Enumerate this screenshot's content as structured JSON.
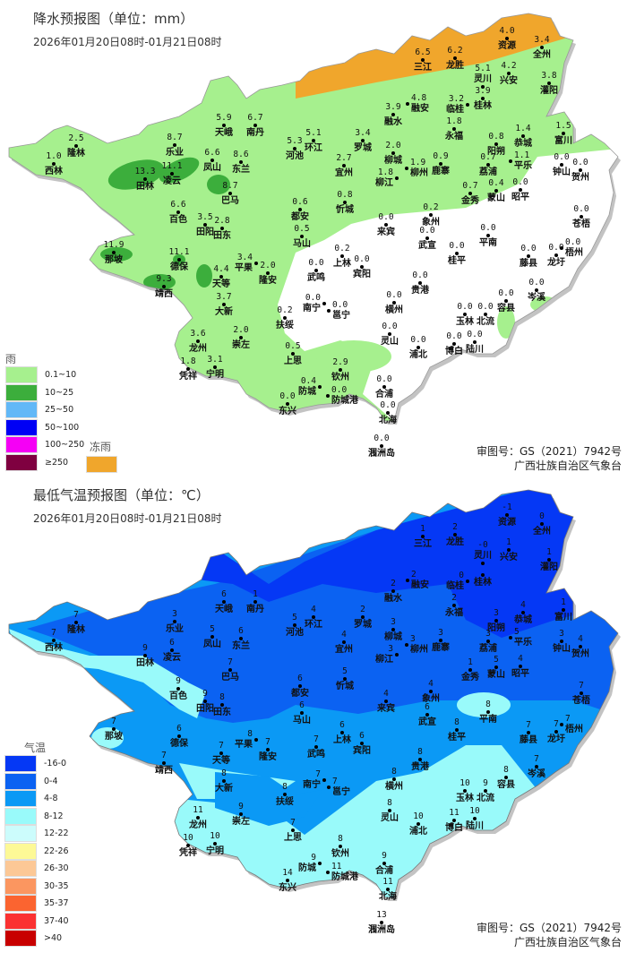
{
  "precip_map": {
    "title": "降水预报图（单位：mm）",
    "period": "2026年01月20日08时-01月21日08时",
    "legend_title": "雨",
    "legend": [
      {
        "label": "0.1~10",
        "color": "#a6f08e"
      },
      {
        "label": "10~25",
        "color": "#3cae3c"
      },
      {
        "label": "25~50",
        "color": "#62b8f7"
      },
      {
        "label": "50~100",
        "color": "#0000f5"
      },
      {
        "label": "100~250",
        "color": "#f500f5"
      },
      {
        "label": "≥250",
        "color": "#7f0040"
      }
    ],
    "freezing_rain_label": "冻雨",
    "freezing_rain_color": "#f0a62c",
    "approval_no": "审图号：GS（2021）7942号",
    "issuer": "广西壮族自治区气象台"
  },
  "tmin_map": {
    "title": "最低气温预报图（单位：℃）",
    "period": "2026年01月20日08时-01月21日08时",
    "legend_title": "气温",
    "legend": [
      {
        "label": "-16-0",
        "color": "#0538f5"
      },
      {
        "label": "0-4",
        "color": "#0b62f2"
      },
      {
        "label": "4-8",
        "color": "#0b99f5"
      },
      {
        "label": "8-12",
        "color": "#99fafa"
      },
      {
        "label": "12-22",
        "color": "#ccfcfc"
      },
      {
        "label": "22-26",
        "color": "#fdf996"
      },
      {
        "label": "26-30",
        "color": "#fcc896"
      },
      {
        "label": "30-35",
        "color": "#fb9660"
      },
      {
        "label": "35-37",
        "color": "#fb6430"
      },
      {
        "label": "37-40",
        "color": "#fb3232"
      },
      {
        "label": ">40",
        "color": "#c80000"
      }
    ],
    "approval_no": "审图号：GS（2021）7942号",
    "issuer": "广西壮族自治区气象台"
  },
  "stations": [
    {
      "name": "隆林",
      "rain": "2.5",
      "tmin": "7"
    },
    {
      "name": "西林",
      "rain": "1.0",
      "tmin": "7"
    },
    {
      "name": "乐业",
      "rain": "8.7",
      "tmin": "3"
    },
    {
      "name": "天峨",
      "rain": "5.9",
      "tmin": "6"
    },
    {
      "name": "南丹",
      "rain": "6.7",
      "tmin": "1"
    },
    {
      "name": "凤山",
      "rain": "6.6",
      "tmin": "5"
    },
    {
      "name": "东兰",
      "rain": "8.6",
      "tmin": "6"
    },
    {
      "name": "田林",
      "rain": "13.3",
      "tmin": "9"
    },
    {
      "name": "凌云",
      "rain": "11.1",
      "tmin": "6"
    },
    {
      "name": "巴马",
      "rain": "8.7",
      "tmin": "7"
    },
    {
      "name": "河池",
      "rain": "5.3",
      "tmin": "5"
    },
    {
      "name": "环江",
      "rain": "5.1",
      "tmin": "4"
    },
    {
      "name": "百色",
      "rain": "6.6",
      "tmin": "9"
    },
    {
      "name": "田阳",
      "rain": "3.5",
      "tmin": "9"
    },
    {
      "name": "田东",
      "rain": "2.8",
      "tmin": "8"
    },
    {
      "name": "都安",
      "rain": "0.6",
      "tmin": "6"
    },
    {
      "name": "马山",
      "rain": "0.5",
      "tmin": "6"
    },
    {
      "name": "那坡",
      "rain": "11.9",
      "tmin": "7"
    },
    {
      "name": "德保",
      "rain": "11.1",
      "tmin": "6"
    },
    {
      "name": "靖西",
      "rain": "9.3",
      "tmin": "7"
    },
    {
      "name": "天等",
      "rain": "4.4",
      "tmin": "7"
    },
    {
      "name": "大新",
      "rain": "3.7",
      "tmin": "8"
    },
    {
      "name": "平果",
      "rain": "3.4",
      "tmin": "8"
    },
    {
      "name": "隆安",
      "rain": "2.0",
      "tmin": "7"
    },
    {
      "name": "扶绥",
      "rain": "0.2",
      "tmin": "8"
    },
    {
      "name": "龙州",
      "rain": "3.6",
      "tmin": "11"
    },
    {
      "name": "凭祥",
      "rain": "1.8",
      "tmin": "10"
    },
    {
      "name": "宁明",
      "rain": "3.1",
      "tmin": "10"
    },
    {
      "name": "崇左",
      "rain": "2.0",
      "tmin": "9"
    },
    {
      "name": "上思",
      "rain": "0.5",
      "tmin": "7"
    },
    {
      "name": "东兴",
      "rain": "0.0",
      "tmin": "14"
    },
    {
      "name": "防城",
      "rain": "0.4",
      "tmin": "9"
    },
    {
      "name": "防城港",
      "rain": "0.0",
      "tmin": "11"
    },
    {
      "name": "钦州",
      "rain": "2.9",
      "tmin": "8"
    },
    {
      "name": "合浦",
      "rain": "0.0",
      "tmin": "9"
    },
    {
      "name": "北海",
      "rain": "0.0",
      "tmin": "11"
    },
    {
      "name": "涠洲岛",
      "rain": "0.0",
      "tmin": "13"
    },
    {
      "name": "南宁",
      "rain": "0.0",
      "tmin": "7"
    },
    {
      "name": "邕宁",
      "rain": "0.0",
      "tmin": "7"
    },
    {
      "name": "武鸣",
      "rain": "0.0",
      "tmin": "7"
    },
    {
      "name": "上林",
      "rain": "0.2",
      "tmin": "6"
    },
    {
      "name": "宾阳",
      "rain": "0.0",
      "tmin": "6"
    },
    {
      "name": "横州",
      "rain": "0.0",
      "tmin": "8"
    },
    {
      "name": "贵港",
      "rain": "0.0",
      "tmin": "8"
    },
    {
      "name": "灵山",
      "rain": "0.0",
      "tmin": "8"
    },
    {
      "name": "浦北",
      "rain": "0.0",
      "tmin": "10"
    },
    {
      "name": "来宾",
      "rain": "0.0",
      "tmin": "4"
    },
    {
      "name": "武宣",
      "rain": "0.0",
      "tmin": "6"
    },
    {
      "name": "桂平",
      "rain": "0.0",
      "tmin": "8"
    },
    {
      "name": "平南",
      "rain": "0.0",
      "tmin": "8"
    },
    {
      "name": "玉林",
      "rain": "0.0",
      "tmin": "10"
    },
    {
      "name": "北流",
      "rain": "0.0",
      "tmin": "9"
    },
    {
      "name": "容县",
      "rain": "0.0",
      "tmin": "8"
    },
    {
      "name": "博白",
      "rain": "0.0",
      "tmin": "11"
    },
    {
      "name": "陆川",
      "rain": "0.0",
      "tmin": "10"
    },
    {
      "name": "藤县",
      "rain": "0.0",
      "tmin": "7"
    },
    {
      "name": "岑溪",
      "rain": "0.0",
      "tmin": "7"
    },
    {
      "name": "梧州",
      "rain": "0.0",
      "tmin": "7"
    },
    {
      "name": "龙圩",
      "rain": "0.0",
      "tmin": "7"
    },
    {
      "name": "苍梧",
      "rain": "0.0",
      "tmin": "7"
    },
    {
      "name": "象州",
      "rain": "0.2",
      "tmin": "4"
    },
    {
      "name": "金秀",
      "rain": "0.7",
      "tmin": "1"
    },
    {
      "name": "蒙山",
      "rain": "0.4",
      "tmin": "5"
    },
    {
      "name": "昭平",
      "rain": "0.0",
      "tmin": "4"
    },
    {
      "name": "钟山",
      "rain": "0.0",
      "tmin": "3"
    },
    {
      "name": "贺州",
      "rain": "0.0",
      "tmin": "4"
    },
    {
      "name": "荔浦",
      "rain": "0.7",
      "tmin": "3"
    },
    {
      "name": "平乐",
      "rain": "1.1",
      "tmin": "5"
    },
    {
      "name": "阳朔",
      "rain": "0.8",
      "tmin": "3"
    },
    {
      "name": "恭城",
      "rain": "1.4",
      "tmin": "4"
    },
    {
      "name": "富川",
      "rain": "1.5",
      "tmin": "1"
    },
    {
      "name": "鹿寨",
      "rain": "0.9",
      "tmin": "3"
    },
    {
      "name": "柳州",
      "rain": "1.9",
      "tmin": "3"
    },
    {
      "name": "柳江",
      "rain": "1.8",
      "tmin": "3"
    },
    {
      "name": "柳城",
      "rain": "2.0",
      "tmin": "3"
    },
    {
      "name": "融水",
      "rain": "3.9",
      "tmin": "2"
    },
    {
      "name": "融安",
      "rain": "4.8",
      "tmin": "2"
    },
    {
      "name": "罗城",
      "rain": "3.4",
      "tmin": "2"
    },
    {
      "name": "宜州",
      "rain": "2.7",
      "tmin": "4"
    },
    {
      "name": "忻城",
      "rain": "0.8",
      "tmin": "5"
    },
    {
      "name": "永福",
      "rain": "1.8",
      "tmin": "2"
    },
    {
      "name": "临桂",
      "rain": "3.2",
      "tmin": "0"
    },
    {
      "name": "桂林",
      "rain": "3.9",
      "tmin": ""
    },
    {
      "name": "灵川",
      "rain": "5.1",
      "tmin": "-0"
    },
    {
      "name": "兴安",
      "rain": "4.2",
      "tmin": "1"
    },
    {
      "name": "资源",
      "rain": "4.0",
      "tmin": "-1"
    },
    {
      "name": "全州",
      "rain": "3.4",
      "tmin": "0"
    },
    {
      "name": "灌阳",
      "rain": "3.8",
      "tmin": "1"
    },
    {
      "name": "三江",
      "rain": "6.5",
      "tmin": "1"
    },
    {
      "name": "龙胜",
      "rain": "6.2",
      "tmin": "2"
    }
  ]
}
